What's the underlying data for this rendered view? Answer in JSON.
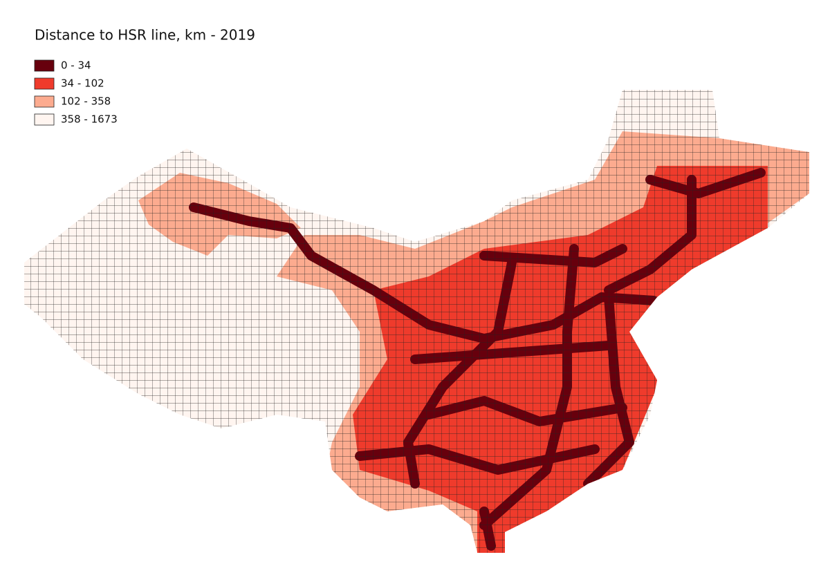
{
  "title": "Distance to HSR line, km - 2019",
  "legend": [
    {
      "label": "0 - 34",
      "color": "#67000d"
    },
    {
      "label": "34 - 102",
      "color": "#ef3b2c"
    },
    {
      "label": "102 - 358",
      "color": "#fcab8f"
    },
    {
      "label": "358 - 1673",
      "color": "#fff5f0"
    }
  ]
}
